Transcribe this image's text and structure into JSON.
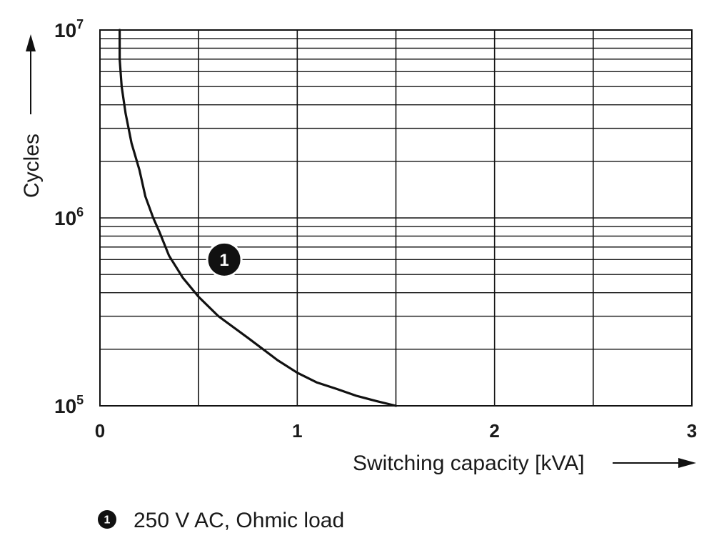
{
  "chart_data": {
    "type": "line",
    "xlabel": "Switching capacity [kVA]",
    "ylabel": "Cycles",
    "xlim": [
      0,
      3
    ],
    "ylim": [
      100000,
      10000000
    ],
    "y_scale": "log",
    "x_ticks": [
      0,
      1,
      2,
      3
    ],
    "x_tick_labels": [
      "0",
      "1",
      "2",
      "3"
    ],
    "y_ticks": [
      {
        "value": 100000,
        "base": "10",
        "exp": "5"
      },
      {
        "value": 1000000,
        "base": "10",
        "exp": "6"
      },
      {
        "value": 10000000,
        "base": "10",
        "exp": "7"
      }
    ],
    "x_grid_step": 0.5,
    "grid": true,
    "series": [
      {
        "marker_label": "1",
        "legend_text": "250 V AC, Ohmic load",
        "color": "#111111",
        "points": [
          [
            0.1,
            10000000
          ],
          [
            0.1,
            7000000
          ],
          [
            0.11,
            5000000
          ],
          [
            0.13,
            3600000
          ],
          [
            0.16,
            2500000
          ],
          [
            0.2,
            1800000
          ],
          [
            0.23,
            1300000
          ],
          [
            0.27,
            1000000
          ],
          [
            0.3,
            850000
          ],
          [
            0.35,
            630000
          ],
          [
            0.42,
            480000
          ],
          [
            0.5,
            380000
          ],
          [
            0.6,
            300000
          ],
          [
            0.75,
            230000
          ],
          [
            0.9,
            175000
          ],
          [
            1.0,
            150000
          ],
          [
            1.1,
            133000
          ],
          [
            1.2,
            123000
          ],
          [
            1.3,
            113000
          ],
          [
            1.4,
            106000
          ],
          [
            1.5,
            100000
          ]
        ]
      }
    ],
    "annotation": {
      "text": "1",
      "x": 0.63,
      "y": 600000
    }
  },
  "legend": {
    "marker": "1",
    "text": "250 V AC, Ohmic load"
  }
}
